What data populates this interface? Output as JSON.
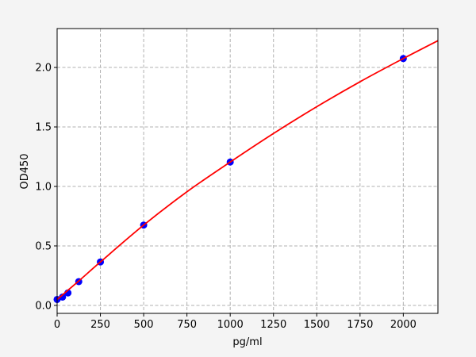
{
  "chart_data": {
    "type": "scatter",
    "title": "",
    "xlabel": "pg/ml",
    "ylabel": "OD450",
    "xlim": [
      0,
      2200
    ],
    "ylim": [
      -0.067,
      2.327
    ],
    "xticks": [
      0,
      250,
      500,
      750,
      1000,
      1250,
      1500,
      1750,
      2000
    ],
    "xtick_labels": [
      "0",
      "250",
      "500",
      "750",
      "1000",
      "1250",
      "1500",
      "1750",
      "2000"
    ],
    "yticks": [
      0.0,
      0.5,
      1.0,
      1.5,
      2.0
    ],
    "ytick_labels": [
      "0.0",
      "0.5",
      "1.0",
      "1.5",
      "2.0"
    ],
    "grid": true,
    "points": {
      "color": "#0000ff",
      "x": [
        0,
        31.25,
        62.5,
        125,
        250,
        500,
        1000,
        2000
      ],
      "y": [
        0.05,
        0.07,
        0.105,
        0.2,
        0.365,
        0.675,
        1.205,
        2.075
      ]
    },
    "fit_curve": {
      "color": "#ff0000",
      "x": [
        0,
        125,
        250,
        500,
        750,
        1000,
        1250,
        1500,
        1750,
        2000,
        2200
      ],
      "y": [
        0.05,
        0.205,
        0.365,
        0.675,
        0.955,
        1.205,
        1.445,
        1.67,
        1.88,
        2.075,
        2.225
      ]
    }
  }
}
